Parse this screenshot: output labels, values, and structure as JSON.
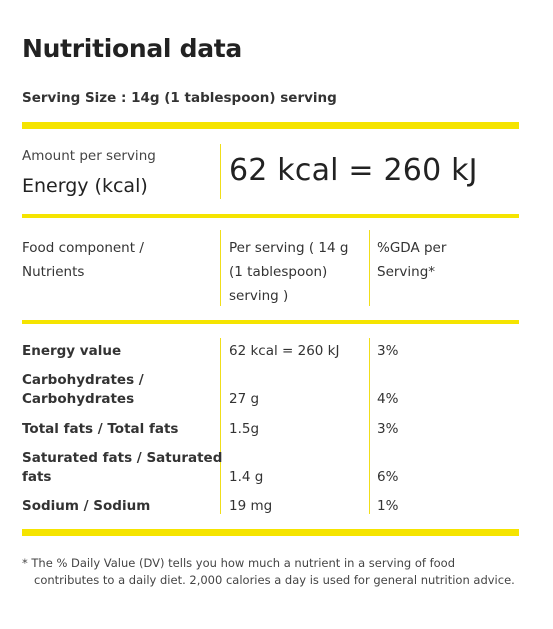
{
  "title": "Nutritional data",
  "serving_size": "Serving Size : 14g (1 tablespoon) serving",
  "amount_per_serving": "Amount per serving",
  "energy_label": "Energy (kcal)",
  "energy_value": "62 kcal = 260 kJ",
  "table": {
    "headers": {
      "component": [
        "Food component /",
        "Nutrients"
      ],
      "per_serving": [
        "Per serving ( 14 g",
        "(1 tablespoon)",
        "serving )"
      ],
      "gda": [
        "%GDA per",
        "Serving*"
      ]
    },
    "rows": [
      {
        "name": [
          "Energy value"
        ],
        "per_serving": "62 kcal = 260 kJ",
        "gda": "3%"
      },
      {
        "name": [
          "Carbohydrates /",
          "Carbohydrates"
        ],
        "per_serving": "27 g",
        "gda": "4%"
      },
      {
        "name": [
          "Total fats / Total fats"
        ],
        "per_serving": "1.5g",
        "gda": "3%"
      },
      {
        "name": [
          "Saturated fats / Saturated",
          "fats"
        ],
        "per_serving": "1.4 g",
        "gda": "6%"
      },
      {
        "name": [
          "Sodium / Sodium"
        ],
        "per_serving": "19 mg",
        "gda": "1%"
      }
    ]
  },
  "footnote": "* The % Daily Value (DV) tells you how much a nutrient in a serving of food contributes to a daily diet. 2,000 calories a day is used for general nutrition advice.",
  "colors": {
    "accent": "#f5e400",
    "divider": "#f0de1a",
    "text": "#2b2b2b"
  }
}
